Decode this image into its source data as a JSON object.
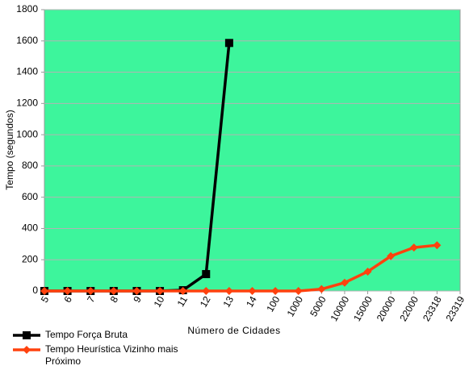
{
  "chart_data": {
    "type": "line",
    "categories": [
      "5",
      "6",
      "7",
      "8",
      "9",
      "10",
      "11",
      "12",
      "13",
      "14",
      "100",
      "1000",
      "5000",
      "10000",
      "15000",
      "20000",
      "22000",
      "23318",
      "23319"
    ],
    "series": [
      {
        "name": "Tempo Força Bruta",
        "color": "#000000",
        "marker": "square",
        "values": [
          0,
          0,
          0,
          0,
          0,
          0,
          5,
          108,
          1587,
          null,
          null,
          null,
          null,
          null,
          null,
          null,
          null,
          null,
          null
        ]
      },
      {
        "name": "Tempo Heurística Vizinho mais Próximo",
        "color": "#ff420e",
        "marker": "diamond",
        "values": [
          0,
          0,
          0,
          0,
          0,
          0,
          0,
          0,
          0,
          0,
          0,
          0,
          12,
          53,
          124,
          223,
          278,
          293,
          null
        ]
      }
    ],
    "ylim": [
      0,
      1800
    ],
    "yticks": [
      0,
      200,
      400,
      600,
      800,
      1000,
      1200,
      1400,
      1600,
      1800
    ],
    "y_label": "Tempo (segundos)",
    "x_label": "Número de Cidades",
    "grid": true,
    "legend": "bottom-left"
  }
}
